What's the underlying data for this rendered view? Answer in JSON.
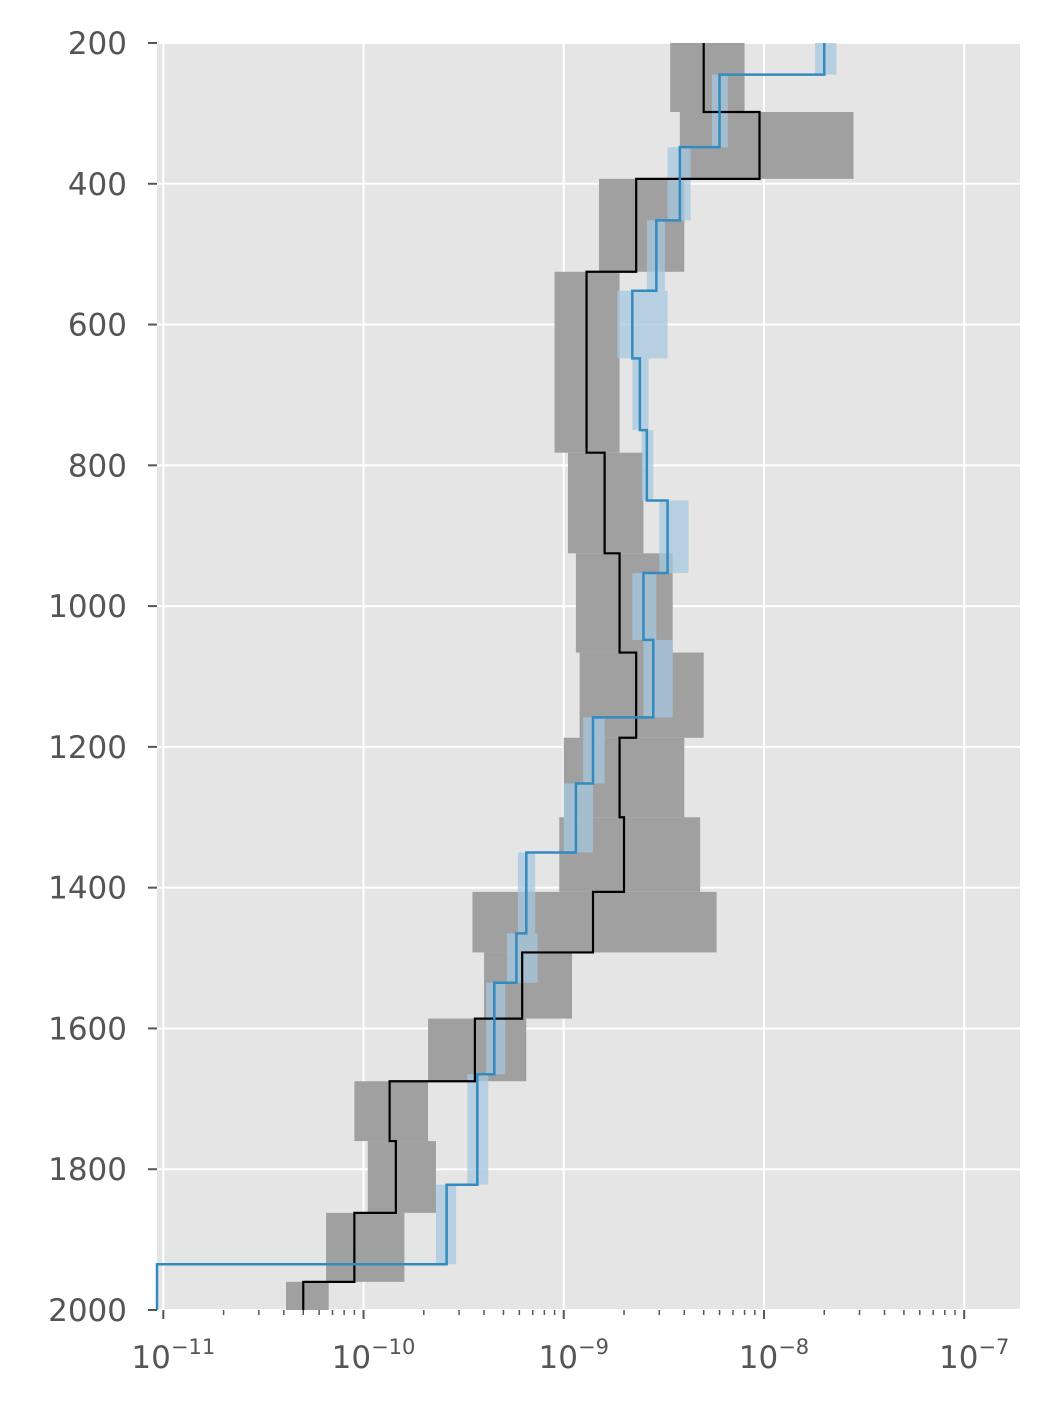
{
  "chart_data": {
    "type": "line",
    "title": "",
    "xlabel": "",
    "ylabel": "",
    "xscale": "log",
    "xlim": [
      9.3e-12,
      1.9e-07
    ],
    "ylim": [
      2000,
      200
    ],
    "y_inverted": true,
    "grid": true,
    "legend": "none",
    "xticks": [
      {
        "base": "10",
        "exp": "−11",
        "value": 1e-11
      },
      {
        "base": "10",
        "exp": "−10",
        "value": 1e-10
      },
      {
        "base": "10",
        "exp": "−9",
        "value": 1e-09
      },
      {
        "base": "10",
        "exp": "−8",
        "value": 1e-08
      },
      {
        "base": "10",
        "exp": "−7",
        "value": 1e-07
      }
    ],
    "yticks": [
      "200",
      "400",
      "600",
      "800",
      "1000",
      "1200",
      "1400",
      "1600",
      "1800",
      "2000"
    ],
    "colors": {
      "background": "#e5e5e5",
      "grid": "#ffffff",
      "series_black": "#000000",
      "series_blue": "#348abd",
      "band_black": "#a0a0a0",
      "band_blue": "#a6c8df",
      "tick_text": "#555555"
    },
    "series": [
      {
        "id": "black",
        "steps": [
          {
            "y0": 200,
            "y1": 298,
            "x": 5e-09,
            "lo": 3.4e-09,
            "hi": 8e-09
          },
          {
            "y0": 298,
            "y1": 393,
            "x": 9.5e-09,
            "lo": 3.8e-09,
            "hi": 2.8e-08
          },
          {
            "y0": 393,
            "y1": 525,
            "x": 2.3e-09,
            "lo": 1.5e-09,
            "hi": 4e-09
          },
          {
            "y0": 525,
            "y1": 782,
            "x": 1.3e-09,
            "lo": 9e-10,
            "hi": 1.9e-09
          },
          {
            "y0": 782,
            "y1": 925,
            "x": 1.6e-09,
            "lo": 1.05e-09,
            "hi": 2.5e-09
          },
          {
            "y0": 925,
            "y1": 1066,
            "x": 1.9e-09,
            "lo": 1.15e-09,
            "hi": 3.5e-09
          },
          {
            "y0": 1066,
            "y1": 1187,
            "x": 2.3e-09,
            "lo": 1.2e-09,
            "hi": 5e-09
          },
          {
            "y0": 1187,
            "y1": 1300,
            "x": 1.9e-09,
            "lo": 1e-09,
            "hi": 4e-09
          },
          {
            "y0": 1300,
            "y1": 1406,
            "x": 2e-09,
            "lo": 9.5e-10,
            "hi": 4.8e-09
          },
          {
            "y0": 1406,
            "y1": 1492,
            "x": 1.4e-09,
            "lo": 3.5e-10,
            "hi": 5.8e-09
          },
          {
            "y0": 1492,
            "y1": 1586,
            "x": 6.2e-10,
            "lo": 4e-10,
            "hi": 1.1e-09
          },
          {
            "y0": 1586,
            "y1": 1675,
            "x": 3.6e-10,
            "lo": 2.1e-10,
            "hi": 6.5e-10
          },
          {
            "y0": 1675,
            "y1": 1760,
            "x": 1.35e-10,
            "lo": 9e-11,
            "hi": 2.1e-10
          },
          {
            "y0": 1760,
            "y1": 1862,
            "x": 1.45e-10,
            "lo": 1.05e-10,
            "hi": 2.3e-10
          },
          {
            "y0": 1862,
            "y1": 1960,
            "x": 9e-11,
            "lo": 6.5e-11,
            "hi": 1.6e-10
          },
          {
            "y0": 1960,
            "y1": 2000,
            "x": 5e-11,
            "lo": 4.1e-11,
            "hi": 6.7e-11
          }
        ]
      },
      {
        "id": "blue",
        "steps": [
          {
            "y0": 200,
            "y1": 245,
            "x": 2e-08,
            "lo": 1.8e-08,
            "hi": 2.3e-08
          },
          {
            "y0": 245,
            "y1": 348,
            "x": 6e-09,
            "lo": 5.5e-09,
            "hi": 6.6e-09
          },
          {
            "y0": 348,
            "y1": 452,
            "x": 3.8e-09,
            "lo": 3.3e-09,
            "hi": 4.3e-09
          },
          {
            "y0": 452,
            "y1": 552,
            "x": 2.9e-09,
            "lo": 2.6e-09,
            "hi": 3.2e-09
          },
          {
            "y0": 552,
            "y1": 648,
            "x": 2.2e-09,
            "lo": 1.85e-09,
            "hi": 3.3e-09
          },
          {
            "y0": 648,
            "y1": 750,
            "x": 2.4e-09,
            "lo": 2.2e-09,
            "hi": 2.65e-09
          },
          {
            "y0": 750,
            "y1": 850,
            "x": 2.6e-09,
            "lo": 2.45e-09,
            "hi": 2.8e-09
          },
          {
            "y0": 850,
            "y1": 953,
            "x": 3.3e-09,
            "lo": 3e-09,
            "hi": 4.2e-09
          },
          {
            "y0": 953,
            "y1": 1048,
            "x": 2.5e-09,
            "lo": 2.2e-09,
            "hi": 2.9e-09
          },
          {
            "y0": 1048,
            "y1": 1158,
            "x": 2.8e-09,
            "lo": 2.5e-09,
            "hi": 3.5e-09
          },
          {
            "y0": 1158,
            "y1": 1252,
            "x": 1.4e-09,
            "lo": 1.25e-09,
            "hi": 1.6e-09
          },
          {
            "y0": 1252,
            "y1": 1350,
            "x": 1.15e-09,
            "lo": 1e-09,
            "hi": 1.4e-09
          },
          {
            "y0": 1350,
            "y1": 1465,
            "x": 6.5e-10,
            "lo": 5.9e-10,
            "hi": 7.2e-10
          },
          {
            "y0": 1465,
            "y1": 1535,
            "x": 5.8e-10,
            "lo": 5.2e-10,
            "hi": 7.4e-10
          },
          {
            "y0": 1535,
            "y1": 1665,
            "x": 4.5e-10,
            "lo": 4.1e-10,
            "hi": 5.1e-10
          },
          {
            "y0": 1665,
            "y1": 1822,
            "x": 3.7e-10,
            "lo": 3.3e-10,
            "hi": 4.2e-10
          },
          {
            "y0": 1822,
            "y1": 1935,
            "x": 2.6e-10,
            "lo": 2.3e-10,
            "hi": 2.9e-10
          },
          {
            "y0": 1935,
            "y1": 2000,
            "x": 9.3e-12,
            "lo": null,
            "hi": null
          }
        ]
      }
    ]
  }
}
